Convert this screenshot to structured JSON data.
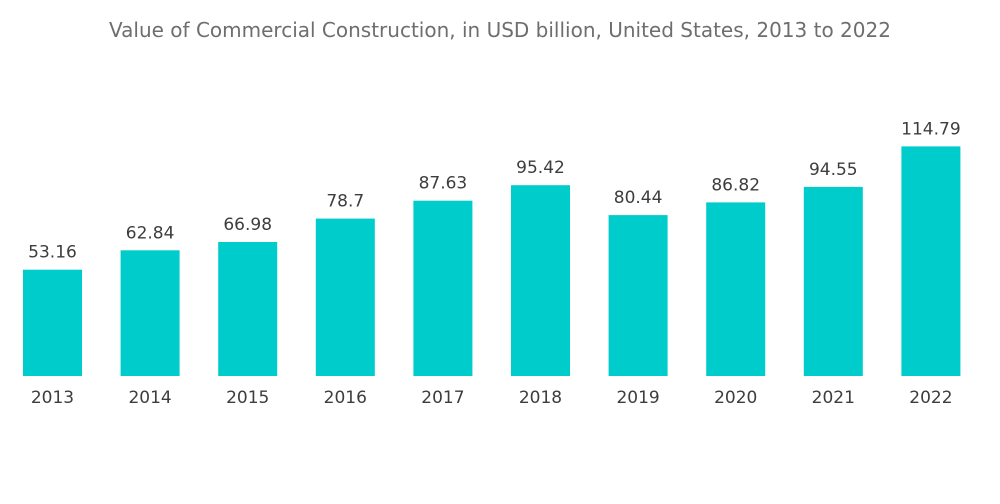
{
  "chart_data": {
    "type": "bar",
    "title": "Value of Commercial Construction, in USD billion, United States, 2013 to 2022",
    "xlabel": "",
    "ylabel": "",
    "categories": [
      "2013",
      "2014",
      "2015",
      "2016",
      "2017",
      "2018",
      "2019",
      "2020",
      "2021",
      "2022"
    ],
    "values": [
      53.16,
      62.84,
      66.98,
      78.7,
      87.63,
      95.42,
      80.44,
      86.82,
      94.55,
      114.79
    ],
    "value_labels": [
      "53.16",
      "62.84",
      "66.98",
      "78.7",
      "87.63",
      "95.42",
      "80.44",
      "86.82",
      "94.55",
      "114.79"
    ],
    "ylim": [
      0,
      120
    ],
    "grid": false,
    "legend": "none",
    "bar_color": "#00cccc"
  }
}
